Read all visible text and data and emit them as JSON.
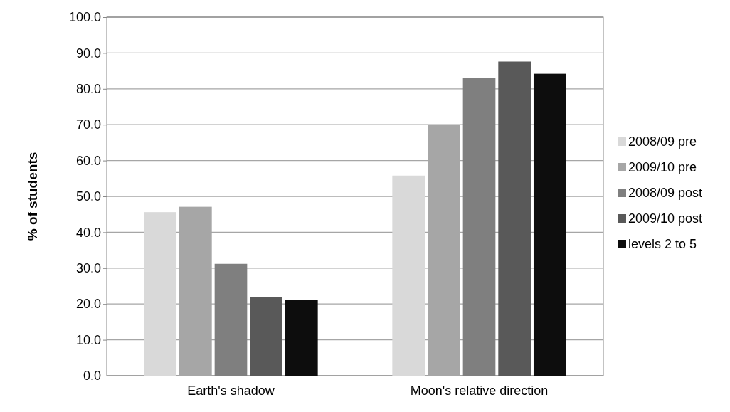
{
  "chart_data": {
    "type": "bar",
    "ylabel": "% of students",
    "categories": [
      "Earth's shadow",
      "Moon's relative direction"
    ],
    "series": [
      {
        "name": "2008/09 pre",
        "color": "#d9d9d9",
        "values": [
          45.6,
          55.8
        ]
      },
      {
        "name": "2009/10 pre",
        "color": "#a6a6a6",
        "values": [
          47.1,
          70.0
        ]
      },
      {
        "name": "2008/09 post",
        "color": "#7f7f7f",
        "values": [
          31.2,
          83.1
        ]
      },
      {
        "name": "2009/10 post",
        "color": "#595959",
        "values": [
          21.9,
          87.6
        ]
      },
      {
        "name": "levels 2 to 5",
        "color": "#0d0d0d",
        "values": [
          21.1,
          84.2
        ]
      }
    ],
    "ylim": [
      0,
      100
    ],
    "yticks": [
      {
        "value": 0,
        "label": "0.0"
      },
      {
        "value": 10,
        "label": "10.0"
      },
      {
        "value": 20,
        "label": "20.0"
      },
      {
        "value": 30,
        "label": "30.0"
      },
      {
        "value": 40,
        "label": "40.0"
      },
      {
        "value": 50,
        "label": "50.0"
      },
      {
        "value": 60,
        "label": "60.0"
      },
      {
        "value": 70,
        "label": "70.0"
      },
      {
        "value": 80,
        "label": "80.0"
      },
      {
        "value": 90,
        "label": "90.0"
      },
      {
        "value": 100,
        "label": "100.0"
      }
    ],
    "grid": "y",
    "legend": "right"
  }
}
